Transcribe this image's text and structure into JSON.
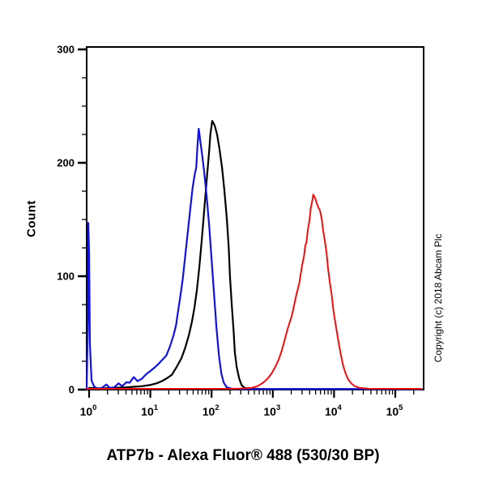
{
  "title": "ATP7b - Alexa Fluor® 488 (530/30 BP)",
  "copyright": "Copyright (c) 2018 Abcam Plc",
  "colors": {
    "background": "#ffffff",
    "axis": "#000000",
    "black_curve": "#000000",
    "blue_curve": "#1212dd",
    "red_curve": "#ee1010"
  },
  "chart_data": {
    "type": "line",
    "title": "ATP7b - Alexa Fluor® 488 (530/30 BP)",
    "xlabel": "",
    "ylabel": "Count",
    "x_scale": "log10",
    "x_tick_base": "10",
    "x_ticks_exponents": [
      0,
      1,
      2,
      3,
      4,
      5
    ],
    "xlim_log10": [
      -0.04,
      5.46
    ],
    "ylim": [
      0,
      302
    ],
    "y_ticks": [
      0,
      100,
      200,
      300
    ],
    "y_minor_tick_step": 25,
    "grid": false,
    "legend": "none",
    "series": [
      {
        "name": "black-curve",
        "color": "#000000",
        "stroke_width": 2.2,
        "peak": {
          "x_log10": 2.01,
          "count": 237
        },
        "points": [
          [
            0.0,
            1.5
          ],
          [
            0.2,
            1.0
          ],
          [
            0.4,
            1.5
          ],
          [
            0.6,
            2.0
          ],
          [
            0.73,
            2.5
          ],
          [
            0.86,
            3.0
          ],
          [
            0.99,
            4.0
          ],
          [
            1.1,
            5.5
          ],
          [
            1.19,
            7.5
          ],
          [
            1.27,
            10
          ],
          [
            1.35,
            13
          ],
          [
            1.43,
            20
          ],
          [
            1.51,
            28
          ],
          [
            1.57,
            37
          ],
          [
            1.63,
            48
          ],
          [
            1.68,
            60
          ],
          [
            1.72,
            72
          ],
          [
            1.76,
            88
          ],
          [
            1.8,
            108
          ],
          [
            1.84,
            132
          ],
          [
            1.88,
            158
          ],
          [
            1.92,
            185
          ],
          [
            1.96,
            210
          ],
          [
            1.98,
            225
          ],
          [
            2.01,
            237
          ],
          [
            2.05,
            233
          ],
          [
            2.09,
            225
          ],
          [
            2.13,
            212
          ],
          [
            2.17,
            196
          ],
          [
            2.21,
            175
          ],
          [
            2.25,
            150
          ],
          [
            2.28,
            125
          ],
          [
            2.3,
            100
          ],
          [
            2.33,
            75
          ],
          [
            2.36,
            52
          ],
          [
            2.38,
            33
          ],
          [
            2.41,
            20
          ],
          [
            2.45,
            10
          ],
          [
            2.49,
            4
          ],
          [
            2.54,
            1.5
          ],
          [
            2.65,
            0.8
          ],
          [
            2.9,
            0.5
          ],
          [
            4.0,
            0.5
          ],
          [
            5.42,
            0.5
          ]
        ]
      },
      {
        "name": "blue-curve",
        "color": "#1212dd",
        "stroke_width": 2.2,
        "peak": {
          "x_log10": 1.79,
          "count": 230
        },
        "points": [
          [
            -0.04,
            0.5
          ],
          [
            -0.02,
            60
          ],
          [
            -0.013,
            147
          ],
          [
            0.0,
            120
          ],
          [
            0.013,
            40
          ],
          [
            0.04,
            8
          ],
          [
            0.08,
            3
          ],
          [
            0.13,
            1
          ],
          [
            0.21,
            1.5
          ],
          [
            0.28,
            4.5
          ],
          [
            0.34,
            1.5
          ],
          [
            0.41,
            2
          ],
          [
            0.48,
            5.5
          ],
          [
            0.54,
            3
          ],
          [
            0.61,
            6.5
          ],
          [
            0.66,
            6
          ],
          [
            0.73,
            11
          ],
          [
            0.79,
            7.5
          ],
          [
            0.86,
            9.5
          ],
          [
            0.93,
            13.5
          ],
          [
            0.99,
            16
          ],
          [
            1.06,
            19
          ],
          [
            1.12,
            22
          ],
          [
            1.19,
            26
          ],
          [
            1.26,
            30
          ],
          [
            1.32,
            38
          ],
          [
            1.38,
            48
          ],
          [
            1.42,
            57
          ],
          [
            1.45,
            68
          ],
          [
            1.49,
            82
          ],
          [
            1.53,
            98
          ],
          [
            1.57,
            118
          ],
          [
            1.61,
            138
          ],
          [
            1.65,
            158
          ],
          [
            1.69,
            178
          ],
          [
            1.72,
            188
          ],
          [
            1.73,
            191
          ],
          [
            1.75,
            196
          ],
          [
            1.77,
            215
          ],
          [
            1.79,
            230
          ],
          [
            1.81,
            222
          ],
          [
            1.85,
            205
          ],
          [
            1.88,
            192
          ],
          [
            1.92,
            170
          ],
          [
            1.96,
            145
          ],
          [
            2.0,
            115
          ],
          [
            2.04,
            85
          ],
          [
            2.08,
            55
          ],
          [
            2.12,
            30
          ],
          [
            2.16,
            14
          ],
          [
            2.2,
            6
          ],
          [
            2.25,
            2
          ],
          [
            2.33,
            0.8
          ],
          [
            2.51,
            0.5
          ],
          [
            5.42,
            0.5
          ]
        ]
      },
      {
        "name": "red-curve",
        "color": "#ee1010",
        "stroke_width": 2.0,
        "peak": {
          "x_log10": 3.66,
          "count": 172
        },
        "points": [
          [
            -0.04,
            0.7
          ],
          [
            1.19,
            0.7
          ],
          [
            2.38,
            0.7
          ],
          [
            2.65,
            1.5
          ],
          [
            2.75,
            3
          ],
          [
            2.84,
            6
          ],
          [
            2.92,
            10
          ],
          [
            2.99,
            15
          ],
          [
            3.04,
            20
          ],
          [
            3.1,
            27
          ],
          [
            3.15,
            35
          ],
          [
            3.2,
            45
          ],
          [
            3.25,
            55
          ],
          [
            3.31,
            65
          ],
          [
            3.35,
            75
          ],
          [
            3.39,
            85
          ],
          [
            3.43,
            93
          ],
          [
            3.45,
            100
          ],
          [
            3.48,
            110
          ],
          [
            3.51,
            118
          ],
          [
            3.53,
            127
          ],
          [
            3.55,
            130
          ],
          [
            3.57,
            140
          ],
          [
            3.6,
            150
          ],
          [
            3.62,
            160
          ],
          [
            3.65,
            168
          ],
          [
            3.66,
            172
          ],
          [
            3.69,
            169
          ],
          [
            3.72,
            164
          ],
          [
            3.74,
            161
          ],
          [
            3.77,
            158
          ],
          [
            3.8,
            150
          ],
          [
            3.82,
            141
          ],
          [
            3.85,
            131
          ],
          [
            3.88,
            120
          ],
          [
            3.9,
            108
          ],
          [
            3.93,
            95
          ],
          [
            3.96,
            84
          ],
          [
            3.99,
            70
          ],
          [
            4.03,
            56
          ],
          [
            4.07,
            43
          ],
          [
            4.11,
            31
          ],
          [
            4.15,
            21
          ],
          [
            4.19,
            14
          ],
          [
            4.23,
            9
          ],
          [
            4.29,
            5
          ],
          [
            4.34,
            3
          ],
          [
            4.42,
            1.5
          ],
          [
            4.56,
            0.8
          ],
          [
            5.42,
            0.7
          ]
        ]
      }
    ]
  }
}
